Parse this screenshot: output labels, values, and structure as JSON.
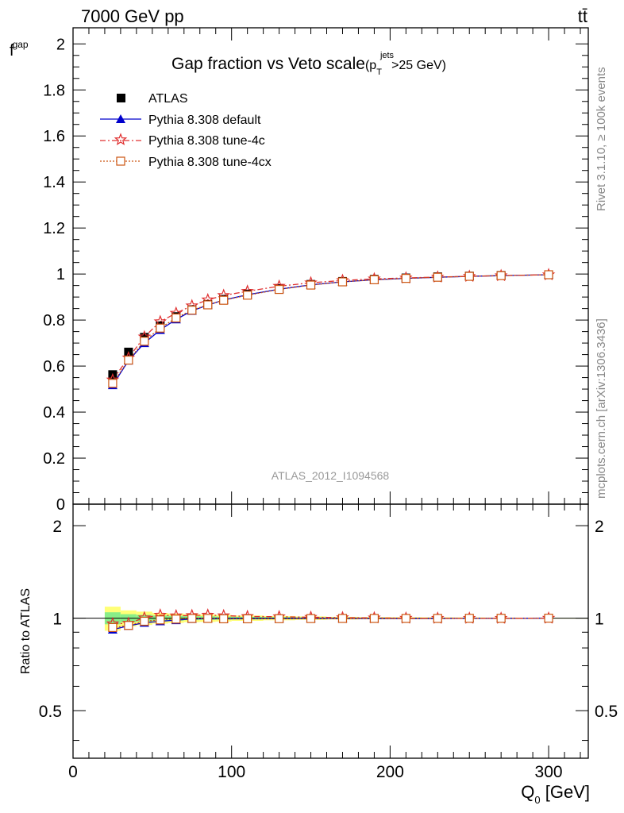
{
  "header": {
    "energy_label": "7000 GeV pp",
    "process_label": "tt̄"
  },
  "side_labels": {
    "rivet": "Rivet 3.1.10, ≥ 100k events",
    "mcplots": "mcplots.cern.ch [arXiv:1306.3436]"
  },
  "chart_data": [
    {
      "type": "scatter",
      "panel": "main",
      "title_main": "Gap fraction vs Veto scale",
      "title_suffix": "(p",
      "title_sub": "T",
      "title_sup": "jets",
      "title_tail": ">25 GeV)",
      "ylabel": "f",
      "ylabel_sub": "gap",
      "watermark": "ATLAS_2012_I1094568",
      "xlim": [
        0,
        325
      ],
      "ylim": [
        0,
        2.07
      ],
      "yticks": [
        0,
        0.2,
        0.4,
        0.6,
        0.8,
        1,
        1.2,
        1.4,
        1.6,
        1.8,
        2
      ],
      "ytick_labels": [
        "0",
        "0.2",
        "0.4",
        "0.6",
        "0.8",
        "1",
        "1.2",
        "1.4",
        "1.6",
        "1.8",
        "2"
      ],
      "legend_position": "top-left",
      "x": [
        25,
        35,
        45,
        55,
        65,
        75,
        85,
        95,
        110,
        130,
        150,
        170,
        190,
        210,
        230,
        250,
        270,
        300
      ],
      "series": [
        {
          "name": "ATLAS",
          "color": "#000000",
          "marker": "square",
          "values": [
            0.563,
            0.661,
            0.725,
            0.775,
            0.815,
            0.845,
            0.868,
            0.89,
            0.913,
            0.937,
            0.955,
            0.968,
            0.977,
            0.983,
            0.988,
            0.991,
            0.994,
            0.997
          ]
        },
        {
          "name": "Pythia 8.308 default",
          "color": "#0000cc",
          "marker": "triangle",
          "dash": "",
          "values": [
            0.517,
            0.624,
            0.7,
            0.757,
            0.803,
            0.84,
            0.865,
            0.887,
            0.91,
            0.934,
            0.953,
            0.966,
            0.975,
            0.981,
            0.986,
            0.99,
            0.993,
            0.997
          ]
        },
        {
          "name": "Pythia 8.308 tune-4c",
          "color": "#e03030",
          "marker": "star",
          "dash": "7,3,2,3",
          "values": [
            0.54,
            0.636,
            0.727,
            0.793,
            0.83,
            0.862,
            0.888,
            0.907,
            0.925,
            0.947,
            0.962,
            0.972,
            0.979,
            0.983,
            0.987,
            0.99,
            0.993,
            0.997
          ]
        },
        {
          "name": "Pythia 8.308 tune-4cx",
          "color": "#cc5511",
          "marker": "open-square",
          "dash": "2,2",
          "values": [
            0.525,
            0.626,
            0.708,
            0.765,
            0.809,
            0.843,
            0.866,
            0.886,
            0.908,
            0.933,
            0.952,
            0.966,
            0.975,
            0.981,
            0.986,
            0.99,
            0.993,
            0.997
          ]
        }
      ]
    },
    {
      "type": "scatter",
      "panel": "ratio",
      "ylabel": "Ratio to ATLAS",
      "xlabel": "Q",
      "xlabel_sub": "0",
      "xlabel_tail": " [GeV]",
      "xlim": [
        0,
        325
      ],
      "ylim": [
        0.35,
        2.35
      ],
      "scale": "log",
      "xticks": [
        0,
        100,
        200,
        300
      ],
      "xtick_labels": [
        "0",
        "100",
        "200",
        "300"
      ],
      "yticks": [
        0.5,
        1,
        2
      ],
      "ytick_labels": [
        "0.5",
        "1",
        "2"
      ],
      "x": [
        25,
        35,
        45,
        55,
        65,
        75,
        85,
        95,
        110,
        130,
        150,
        170,
        190,
        210,
        230,
        250,
        270,
        300
      ],
      "band_edges": [
        20,
        30,
        40,
        50,
        60,
        70,
        80,
        90,
        100,
        120,
        140,
        160,
        180,
        200,
        220,
        240,
        260,
        280,
        325
      ],
      "band_yellow_halfwidth": [
        0.09,
        0.06,
        0.05,
        0.04,
        0.035,
        0.03,
        0.028,
        0.025,
        0.02,
        0.016,
        0.013,
        0.01,
        0.008,
        0.007,
        0.006,
        0.005,
        0.004,
        0.003
      ],
      "band_green_halfwidth": [
        0.045,
        0.03,
        0.025,
        0.02,
        0.018,
        0.015,
        0.014,
        0.012,
        0.01,
        0.008,
        0.006,
        0.005,
        0.004,
        0.0035,
        0.003,
        0.0025,
        0.002,
        0.0015
      ],
      "series": [
        {
          "name": "Pythia 8.308 default",
          "color": "#0000cc",
          "marker": "triangle",
          "dash": "",
          "values": [
            0.918,
            0.944,
            0.966,
            0.977,
            0.985,
            0.994,
            0.997,
            0.997,
            0.997,
            0.997,
            0.998,
            0.998,
            0.998,
            0.998,
            0.998,
            0.999,
            0.999,
            1.0
          ]
        },
        {
          "name": "Pythia 8.308 tune-4c",
          "color": "#e03030",
          "marker": "star",
          "dash": "7,3,2,3",
          "values": [
            0.959,
            0.962,
            1.003,
            1.023,
            1.018,
            1.02,
            1.023,
            1.019,
            1.013,
            1.011,
            1.007,
            1.004,
            1.002,
            1.0,
            0.999,
            0.999,
            0.999,
            1.0
          ]
        },
        {
          "name": "Pythia 8.308 tune-4cx",
          "color": "#cc5511",
          "marker": "open-square",
          "dash": "2,2",
          "values": [
            0.932,
            0.947,
            0.977,
            0.987,
            0.993,
            0.998,
            0.998,
            0.995,
            0.995,
            0.996,
            0.997,
            0.998,
            0.998,
            0.998,
            0.998,
            0.999,
            0.999,
            1.0
          ]
        }
      ]
    }
  ]
}
